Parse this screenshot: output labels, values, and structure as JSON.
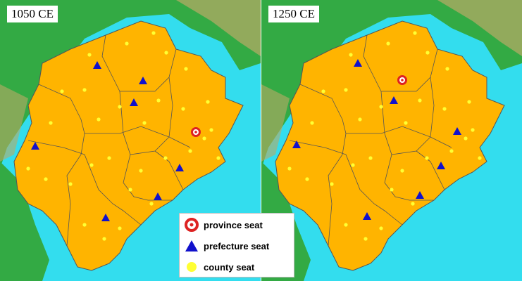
{
  "colors": {
    "sea": "#33ddee",
    "land": "#33aa44",
    "mountain": "#bbaa66",
    "province": "#ffb400",
    "border": "#555555",
    "province_seat": "#dd2222",
    "prefecture_seat": "#1111cc",
    "county_seat": "#ffff33"
  },
  "panels": [
    {
      "id": "left",
      "year_label": "1050 CE"
    },
    {
      "id": "right",
      "year_label": "1250 CE"
    }
  ],
  "legend": {
    "province": {
      "label": "province seat",
      "icon": "bullseye-icon"
    },
    "prefecture": {
      "label": "prefecture seat",
      "icon": "triangle-icon"
    },
    "county": {
      "label": "county seat",
      "icon": "dot-icon"
    }
  }
}
